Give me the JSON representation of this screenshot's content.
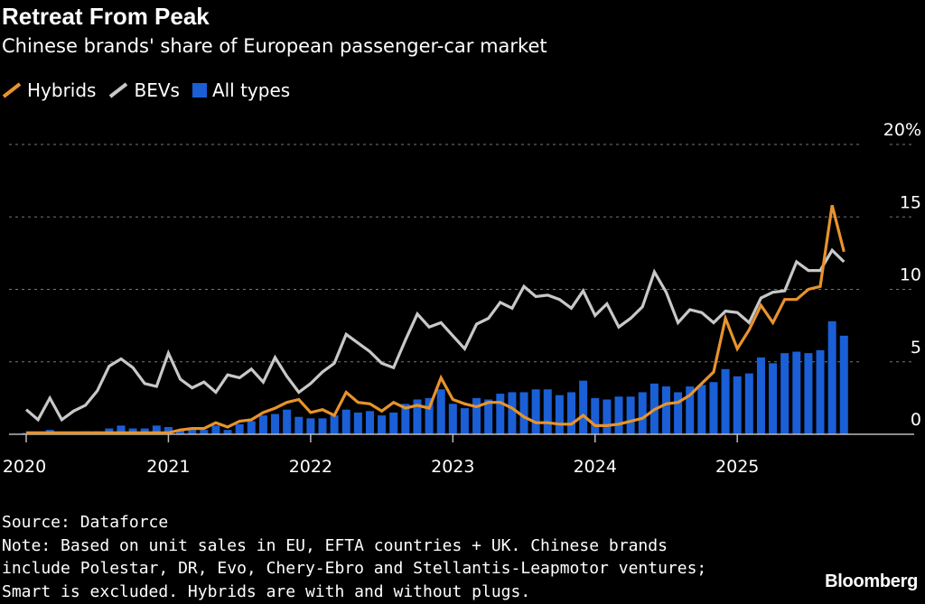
{
  "chart_data": {
    "type": "bar+line",
    "title": "Retreat From Peak",
    "subtitle": "Chinese brands' share of European passenger-car market",
    "ylim": [
      0,
      20
    ],
    "y_ticks": [
      "0",
      "5",
      "10",
      "15",
      "20%"
    ],
    "y_tick_values": [
      0,
      5,
      10,
      15,
      20
    ],
    "x_ticks": [
      "2020",
      "2021",
      "2022",
      "2023",
      "2024",
      "2025"
    ],
    "x_start": "2020-01",
    "x_end": "2025-10",
    "frequency": "monthly",
    "grid": "horizontal dotted",
    "legend_position": "top-left",
    "colors": {
      "Hybrids": "#e8932c",
      "BEVs": "#c8c8c8",
      "All types": "#1a5fd6"
    },
    "series": [
      {
        "name": "Hybrids",
        "kind": "line",
        "values": [
          0.1,
          0.1,
          0.1,
          0.1,
          0.1,
          0.1,
          0.1,
          0.1,
          0.1,
          0.1,
          0.1,
          0.1,
          0.1,
          0.3,
          0.4,
          0.4,
          0.8,
          0.5,
          0.9,
          1.0,
          1.5,
          1.8,
          2.2,
          2.4,
          1.5,
          1.7,
          1.3,
          2.9,
          2.2,
          2.1,
          1.6,
          2.2,
          1.8,
          2.0,
          1.8,
          3.9,
          2.4,
          2.1,
          1.9,
          2.2,
          2.2,
          1.8,
          1.2,
          0.8,
          0.8,
          0.7,
          0.7,
          1.3,
          0.6,
          0.6,
          0.7,
          0.9,
          1.1,
          1.7,
          2.1,
          2.2,
          2.7,
          3.5,
          4.3,
          8.0,
          5.9,
          7.2,
          8.9,
          7.7,
          9.3,
          9.3,
          10.0,
          10.2,
          15.8,
          12.6
        ]
      },
      {
        "name": "BEVs",
        "kind": "line",
        "values": [
          1.7,
          1.0,
          2.5,
          1.0,
          1.6,
          2.0,
          3.0,
          4.7,
          5.2,
          4.6,
          3.5,
          3.3,
          5.6,
          3.8,
          3.2,
          3.6,
          2.9,
          4.1,
          3.9,
          4.5,
          3.6,
          5.3,
          4.0,
          2.9,
          3.5,
          4.3,
          4.9,
          6.9,
          6.3,
          5.7,
          4.9,
          4.6,
          6.5,
          8.3,
          7.4,
          7.7,
          6.8,
          5.9,
          7.6,
          8.0,
          9.1,
          8.7,
          10.2,
          9.5,
          9.6,
          9.3,
          8.7,
          9.9,
          8.2,
          9.0,
          7.4,
          8.0,
          8.8,
          11.2,
          9.8,
          7.7,
          8.6,
          8.4,
          7.7,
          8.5,
          8.4,
          7.7,
          9.4,
          9.8,
          9.9,
          11.9,
          11.3,
          11.3,
          12.7,
          11.9
        ]
      },
      {
        "name": "All types",
        "kind": "bar",
        "values": [
          0.1,
          0.1,
          0.3,
          0.1,
          0.1,
          0.2,
          0.2,
          0.4,
          0.6,
          0.4,
          0.4,
          0.6,
          0.5,
          0.3,
          0.3,
          0.3,
          0.6,
          0.3,
          0.7,
          0.9,
          1.3,
          1.4,
          1.7,
          1.2,
          1.1,
          1.1,
          1.3,
          1.7,
          1.5,
          1.6,
          1.3,
          1.5,
          2.1,
          2.4,
          2.5,
          3.1,
          2.1,
          1.8,
          2.5,
          2.4,
          2.8,
          2.9,
          2.9,
          3.1,
          3.1,
          2.7,
          2.9,
          3.7,
          2.5,
          2.4,
          2.6,
          2.6,
          2.9,
          3.5,
          3.3,
          2.9,
          3.3,
          3.4,
          3.6,
          4.5,
          4.0,
          4.2,
          5.3,
          4.9,
          5.6,
          5.7,
          5.6,
          5.8,
          7.8,
          6.8
        ]
      }
    ]
  },
  "footer": {
    "source": "Source: Dataforce",
    "note_lines": [
      "Note: Based on unit sales in EU, EFTA countries + UK. Chinese brands",
      "include Polestar, DR, Evo, Chery-Ebro and Stellantis-Leapmotor ventures;",
      "Smart is excluded. Hybrids are with and without plugs."
    ],
    "logo": "Bloomberg"
  }
}
